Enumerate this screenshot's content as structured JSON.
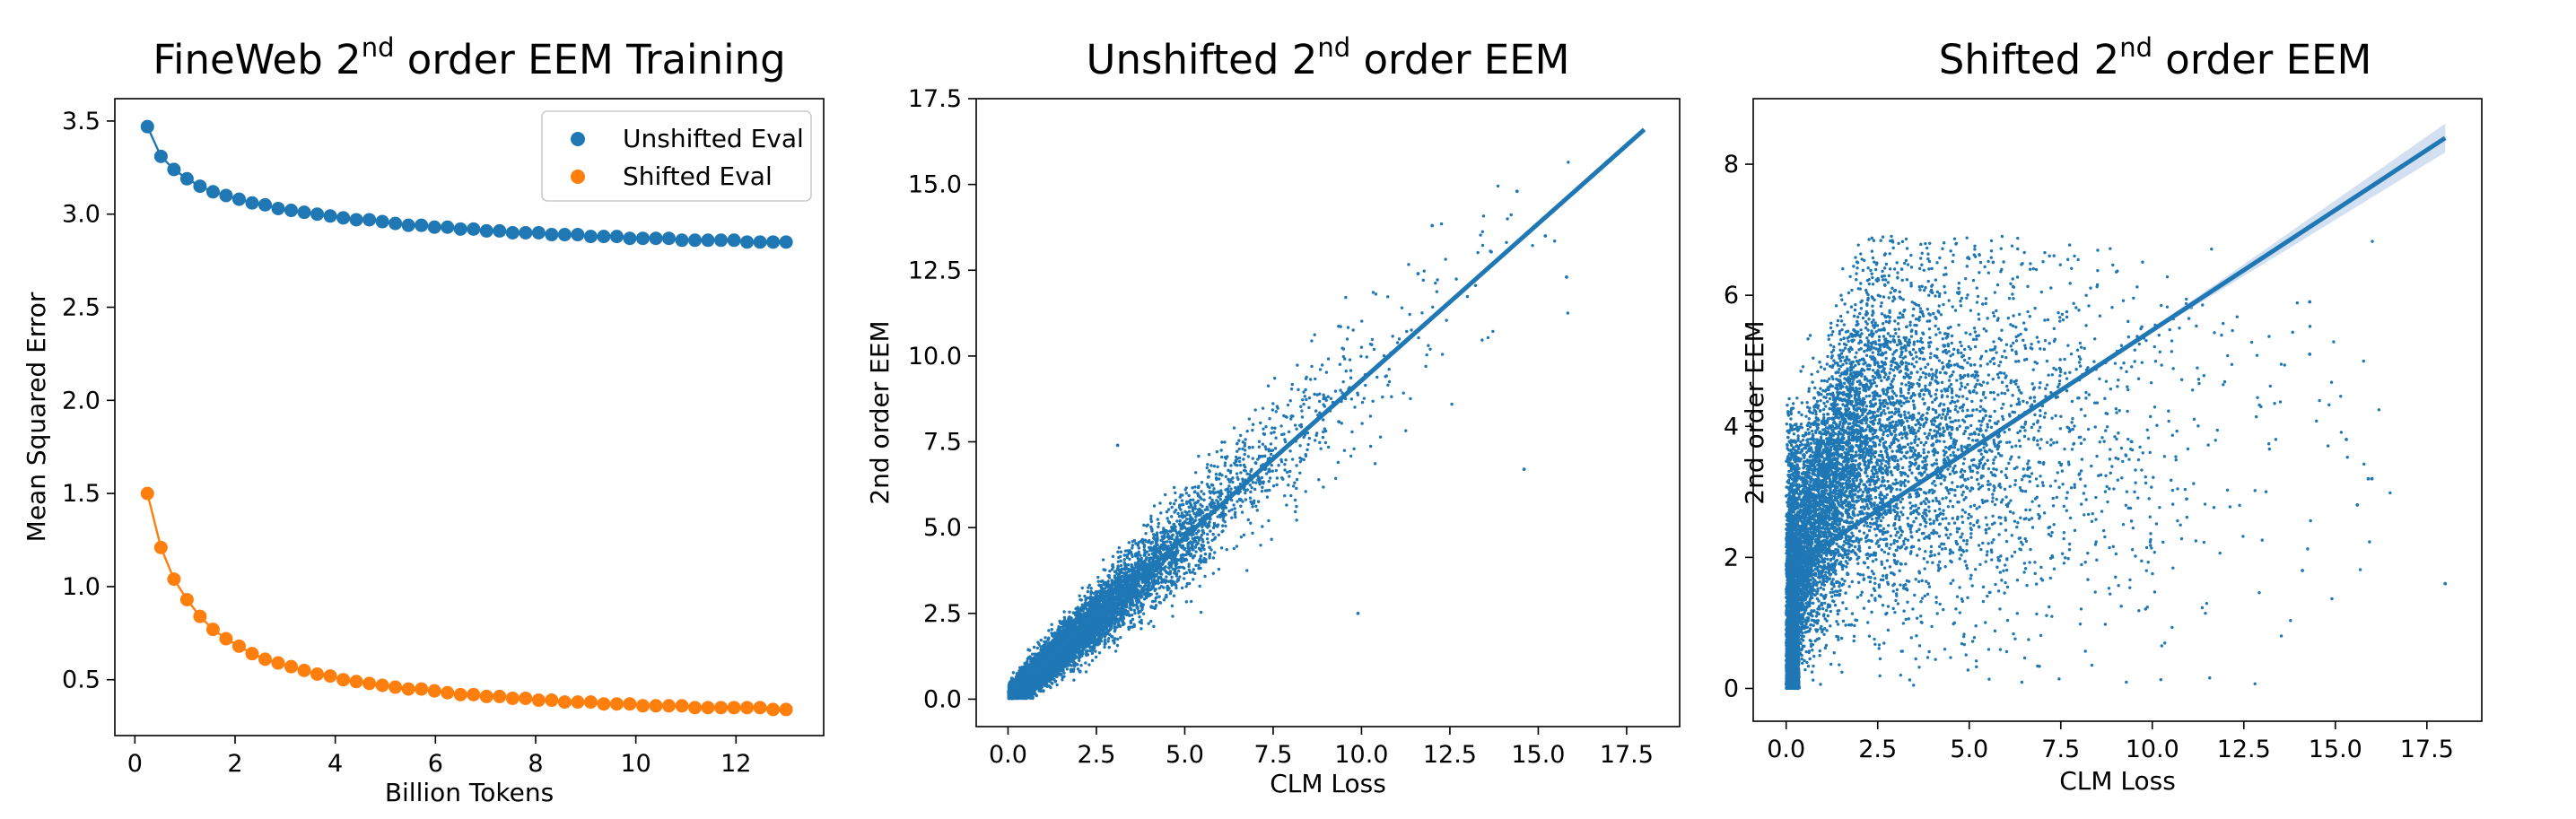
{
  "colors": {
    "blue": "#1f77b4",
    "orange": "#ff7f0e",
    "band": "#aec7e8"
  },
  "chart_data": [
    {
      "type": "line",
      "title": {
        "main": "FineWeb 2",
        "sup": "nd",
        "rest": " order EEM Training"
      },
      "xlabel": "Billion Tokens",
      "ylabel": "Mean Squared Error",
      "xlim": [
        -0.4,
        13.75
      ],
      "ylim": [
        0.2,
        3.62
      ],
      "xticks": [
        0,
        2,
        4,
        6,
        8,
        10,
        12
      ],
      "yticks": [
        0.5,
        1.0,
        1.5,
        2.0,
        2.5,
        3.0,
        3.5
      ],
      "ytick_labels": [
        "0.5",
        "1.0",
        "1.5",
        "2.0",
        "2.5",
        "3.0",
        "3.5"
      ],
      "legend_position": "top-right",
      "x": [
        0.25,
        0.52,
        0.78,
        1.04,
        1.3,
        1.56,
        1.82,
        2.08,
        2.34,
        2.6,
        2.86,
        3.12,
        3.38,
        3.64,
        3.9,
        4.16,
        4.42,
        4.68,
        4.94,
        5.2,
        5.46,
        5.72,
        5.98,
        6.24,
        6.5,
        6.76,
        7.02,
        7.28,
        7.54,
        7.8,
        8.06,
        8.32,
        8.58,
        8.84,
        9.1,
        9.36,
        9.62,
        9.88,
        10.14,
        10.4,
        10.66,
        10.92,
        11.18,
        11.44,
        11.7,
        11.96,
        12.22,
        12.48,
        12.74,
        13.0
      ],
      "series": [
        {
          "name": "Unshifted Eval",
          "color": "blue",
          "values": [
            3.47,
            3.31,
            3.24,
            3.19,
            3.15,
            3.12,
            3.1,
            3.08,
            3.06,
            3.05,
            3.03,
            3.02,
            3.01,
            3.0,
            2.99,
            2.98,
            2.97,
            2.97,
            2.96,
            2.95,
            2.94,
            2.94,
            2.93,
            2.93,
            2.92,
            2.92,
            2.91,
            2.91,
            2.9,
            2.9,
            2.9,
            2.89,
            2.89,
            2.89,
            2.88,
            2.88,
            2.88,
            2.87,
            2.87,
            2.87,
            2.87,
            2.86,
            2.86,
            2.86,
            2.86,
            2.86,
            2.85,
            2.85,
            2.85,
            2.85
          ]
        },
        {
          "name": "Shifted Eval",
          "color": "orange",
          "values": [
            1.5,
            1.21,
            1.04,
            0.93,
            0.84,
            0.77,
            0.72,
            0.68,
            0.64,
            0.61,
            0.59,
            0.57,
            0.55,
            0.53,
            0.52,
            0.5,
            0.49,
            0.48,
            0.47,
            0.46,
            0.45,
            0.45,
            0.44,
            0.43,
            0.42,
            0.42,
            0.41,
            0.41,
            0.4,
            0.4,
            0.39,
            0.39,
            0.38,
            0.38,
            0.38,
            0.37,
            0.37,
            0.37,
            0.36,
            0.36,
            0.36,
            0.36,
            0.35,
            0.35,
            0.35,
            0.35,
            0.35,
            0.35,
            0.34,
            0.34
          ]
        }
      ]
    },
    {
      "type": "scatter",
      "title": {
        "main": "Unshifted 2",
        "sup": "nd",
        "rest": " order EEM"
      },
      "xlabel": "CLM Loss",
      "ylabel": "2nd order EEM",
      "xlim": [
        -0.9,
        19.0
      ],
      "ylim": [
        -0.8,
        17.5
      ],
      "xticks": [
        0.0,
        2.5,
        5.0,
        7.5,
        10.0,
        12.5,
        15.0,
        17.5
      ],
      "xtick_labels": [
        "0.0",
        "2.5",
        "5.0",
        "7.5",
        "10.0",
        "12.5",
        "15.0",
        "17.5"
      ],
      "yticks": [
        0.0,
        2.5,
        5.0,
        7.5,
        10.0,
        12.5,
        15.0,
        17.5
      ],
      "ytick_labels": [
        "0.0",
        "2.5",
        "5.0",
        "7.5",
        "10.0",
        "12.5",
        "15.0",
        "17.5"
      ],
      "color": "blue",
      "point_count": 9000,
      "regression": {
        "x": [
          0.0,
          18.0
        ],
        "y": [
          0.15,
          16.6
        ]
      },
      "notable_points": [
        {
          "x": 9.9,
          "y": 2.5
        },
        {
          "x": 14.6,
          "y": 6.7
        },
        {
          "x": 14.4,
          "y": 14.8
        },
        {
          "x": 15.2,
          "y": 13.5
        },
        {
          "x": 15.8,
          "y": 12.3
        },
        {
          "x": 12.0,
          "y": 13.8
        },
        {
          "x": 3.1,
          "y": 7.4
        },
        {
          "x": 11.6,
          "y": 12.4
        }
      ]
    },
    {
      "type": "scatter",
      "title": {
        "main": "Shifted 2",
        "sup": "nd",
        "rest": " order EEM"
      },
      "xlabel": "CLM Loss",
      "ylabel": "2nd order EEM",
      "xlim": [
        -0.9,
        19.0
      ],
      "ylim": [
        -0.5,
        9.0
      ],
      "xticks": [
        0.0,
        2.5,
        5.0,
        7.5,
        10.0,
        12.5,
        15.0,
        17.5
      ],
      "xtick_labels": [
        "0.0",
        "2.5",
        "5.0",
        "7.5",
        "10.0",
        "12.5",
        "15.0",
        "17.5"
      ],
      "yticks": [
        0,
        2,
        4,
        6,
        8
      ],
      "ytick_labels": [
        "0",
        "2",
        "4",
        "6",
        "8"
      ],
      "color": "blue",
      "point_count": 9000,
      "regression": {
        "x": [
          0.0,
          18.0
        ],
        "y": [
          1.8,
          8.4
        ]
      },
      "notable_points": [
        {
          "x": 15.3,
          "y": 3.8
        },
        {
          "x": 15.9,
          "y": 3.2
        },
        {
          "x": 18.0,
          "y": 1.6
        },
        {
          "x": 14.3,
          "y": 5.1
        },
        {
          "x": 14.3,
          "y": 5.9
        },
        {
          "x": 16.0,
          "y": 3.2
        },
        {
          "x": 14.1,
          "y": 1.8
        },
        {
          "x": 15.6,
          "y": 2.8
        }
      ]
    }
  ]
}
